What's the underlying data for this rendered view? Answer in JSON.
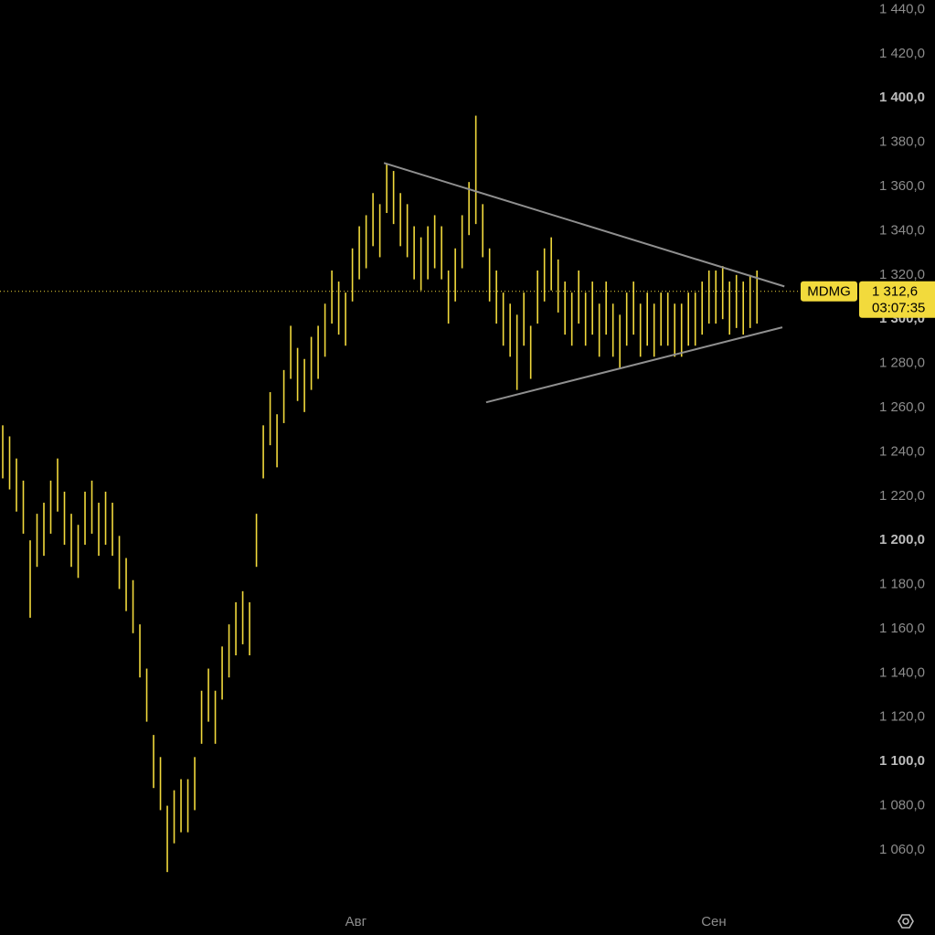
{
  "chart_data": {
    "type": "range_bar",
    "ticker": "MDMG",
    "color": "#f2da3c",
    "series": {
      "high": [
        1252,
        1247,
        1237,
        1227,
        1200,
        1212,
        1217,
        1227,
        1237,
        1222,
        1212,
        1207,
        1222,
        1227,
        1217,
        1222,
        1217,
        1202,
        1192,
        1182,
        1162,
        1142,
        1112,
        1102,
        1080,
        1087,
        1092,
        1092,
        1102,
        1132,
        1142,
        1132,
        1152,
        1162,
        1172,
        1177,
        1172,
        1212,
        1252,
        1267,
        1257,
        1277,
        1297,
        1287,
        1282,
        1292,
        1297,
        1307,
        1322,
        1317,
        1312,
        1332,
        1342,
        1347,
        1357,
        1352,
        1370,
        1367,
        1357,
        1352,
        1342,
        1337,
        1342,
        1347,
        1342,
        1322,
        1332,
        1347,
        1362,
        1392,
        1352,
        1332,
        1322,
        1312,
        1307,
        1302,
        1312,
        1297,
        1322,
        1332,
        1337,
        1327,
        1317,
        1312,
        1322,
        1312,
        1317,
        1307,
        1317,
        1307,
        1302,
        1312,
        1317,
        1307,
        1312,
        1307,
        1312,
        1312,
        1307,
        1307,
        1312,
        1312,
        1317,
        1322,
        1322,
        1324,
        1317,
        1320,
        1317,
        1320,
        1322
      ],
      "low": [
        1228,
        1223,
        1213,
        1203,
        1165,
        1188,
        1193,
        1203,
        1213,
        1198,
        1188,
        1183,
        1198,
        1203,
        1193,
        1198,
        1193,
        1178,
        1168,
        1158,
        1138,
        1118,
        1088,
        1078,
        1050,
        1063,
        1068,
        1068,
        1078,
        1108,
        1118,
        1108,
        1128,
        1138,
        1148,
        1153,
        1148,
        1188,
        1228,
        1243,
        1233,
        1253,
        1273,
        1263,
        1258,
        1268,
        1273,
        1283,
        1298,
        1293,
        1288,
        1308,
        1318,
        1323,
        1333,
        1328,
        1348,
        1343,
        1333,
        1328,
        1318,
        1313,
        1318,
        1323,
        1318,
        1298,
        1308,
        1323,
        1338,
        1343,
        1328,
        1308,
        1298,
        1288,
        1283,
        1268,
        1288,
        1273,
        1298,
        1308,
        1313,
        1303,
        1293,
        1288,
        1298,
        1288,
        1293,
        1283,
        1293,
        1283,
        1278,
        1288,
        1293,
        1283,
        1288,
        1283,
        1288,
        1288,
        1283,
        1283,
        1288,
        1288,
        1293,
        1298,
        1298,
        1300,
        1293,
        1296,
        1293,
        1296,
        1298
      ]
    },
    "xlim": [
      -0.4,
      124.9
    ],
    "xticks": [
      {
        "value": 51.5,
        "label": "Авг"
      },
      {
        "value": 103.7,
        "label": "Сен"
      }
    ],
    "ylim": [
      1054.2,
      1444.3
    ],
    "yticks": [
      {
        "value": 1060,
        "label": "1 060,0"
      },
      {
        "value": 1080,
        "label": "1 080,0"
      },
      {
        "value": 1100,
        "label": "1 100,0"
      },
      {
        "value": 1120,
        "label": "1 120,0"
      },
      {
        "value": 1140,
        "label": "1 140,0"
      },
      {
        "value": 1160,
        "label": "1 160,0"
      },
      {
        "value": 1180,
        "label": "1 180,0"
      },
      {
        "value": 1200,
        "label": "1 200,0"
      },
      {
        "value": 1220,
        "label": "1 220,0"
      },
      {
        "value": 1240,
        "label": "1 240,0"
      },
      {
        "value": 1260,
        "label": "1 260,0"
      },
      {
        "value": 1280,
        "label": "1 280,0"
      },
      {
        "value": 1300,
        "label": "1 300,0"
      },
      {
        "value": 1320,
        "label": "1 320,0"
      },
      {
        "value": 1340,
        "label": "1 340,0"
      },
      {
        "value": 1360,
        "label": "1 360,0"
      },
      {
        "value": 1380,
        "label": "1 380,0"
      },
      {
        "value": 1400,
        "label": "1 400,0"
      },
      {
        "value": 1420,
        "label": "1 420,0"
      },
      {
        "value": 1440,
        "label": "1 440,0"
      }
    ],
    "last_price": {
      "value": 1312.6,
      "label": "1 312,6"
    },
    "countdown": "03:07:35",
    "trendlines": [
      {
        "color": "#8f8f8f",
        "x": [
          55.6,
          114
        ],
        "y": [
          1370.6,
          1314.8
        ]
      },
      {
        "color": "#8f8f8f",
        "x": [
          70.5,
          113.7
        ],
        "y": [
          1262.4,
          1296.3
        ]
      }
    ]
  }
}
